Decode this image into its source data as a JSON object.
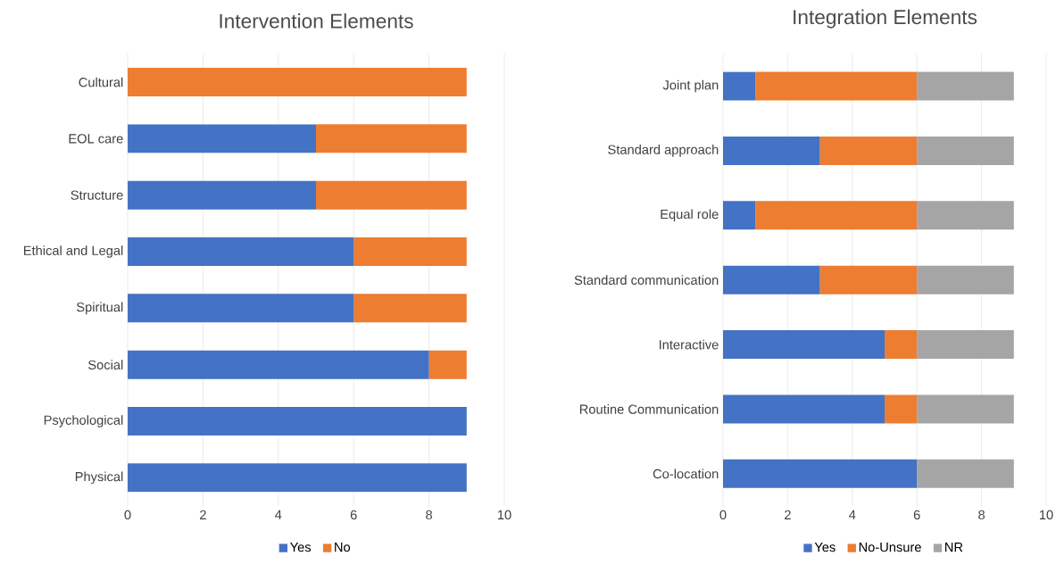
{
  "chart_data": [
    {
      "type": "bar",
      "orientation": "horizontal",
      "stacked": true,
      "title": "Intervention Elements",
      "categories": [
        "Cultural",
        "EOL care",
        "Structure",
        "Ethical and Legal",
        "Spiritual",
        "Social",
        "Psychological",
        "Physical"
      ],
      "series": [
        {
          "name": "Yes",
          "color": "#4472c4",
          "values": [
            0,
            5,
            5,
            6,
            6,
            8,
            9,
            9
          ]
        },
        {
          "name": "No",
          "color": "#ed7d31",
          "values": [
            9,
            4,
            4,
            3,
            3,
            1,
            0,
            0
          ]
        }
      ],
      "xlim": [
        0,
        10
      ],
      "xticks": [
        0,
        2,
        4,
        6,
        8,
        10
      ],
      "grid": "x",
      "legend": "bottom"
    },
    {
      "type": "bar",
      "orientation": "horizontal",
      "stacked": true,
      "title": "Integration Elements",
      "categories": [
        "Joint plan",
        "Standard approach",
        "Equal role",
        "Standard communication",
        "Interactive",
        "Routine Communication",
        "Co-location"
      ],
      "series": [
        {
          "name": "Yes",
          "color": "#4472c4",
          "values": [
            1,
            3,
            1,
            3,
            5,
            5,
            6
          ]
        },
        {
          "name": "No-Unsure",
          "color": "#ed7d31",
          "values": [
            5,
            3,
            5,
            3,
            1,
            1,
            0
          ]
        },
        {
          "name": "NR",
          "color": "#a5a5a5",
          "values": [
            3,
            3,
            3,
            3,
            3,
            3,
            3
          ]
        }
      ],
      "xlim": [
        0,
        10
      ],
      "xticks": [
        0,
        2,
        4,
        6,
        8,
        10
      ],
      "grid": "x",
      "legend": "bottom"
    }
  ]
}
